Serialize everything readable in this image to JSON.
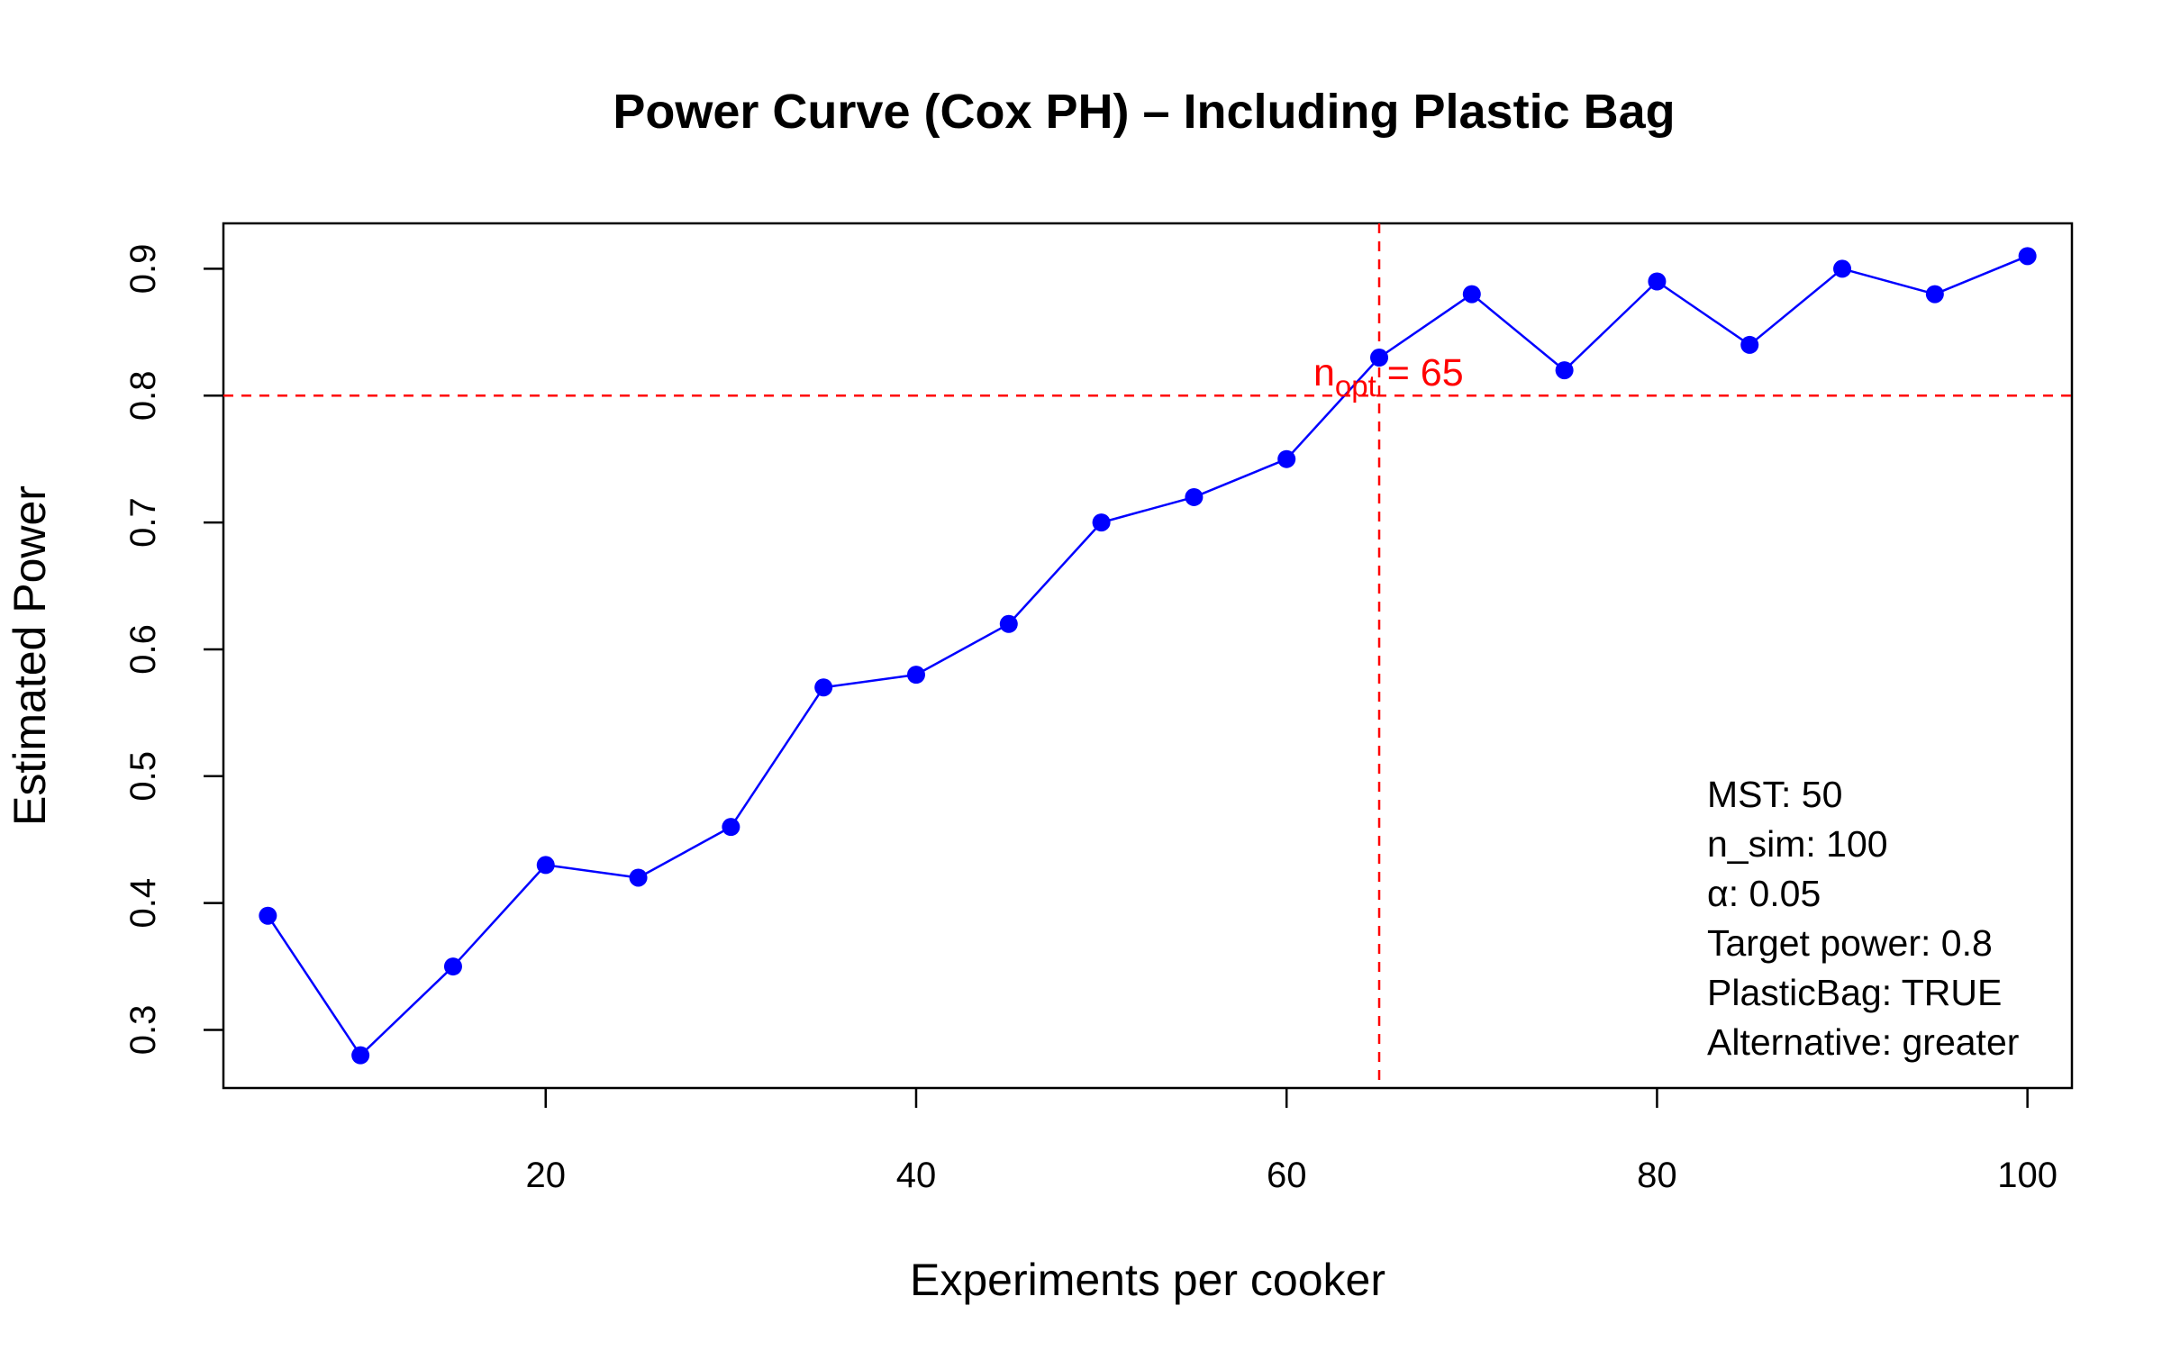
{
  "chart_data": {
    "type": "line",
    "title": "Power Curve (Cox PH) – Including Plastic Bag",
    "xlabel": "Experiments per cooker",
    "ylabel": "Estimated Power",
    "xlim": [
      2.6,
      102.4
    ],
    "ylim": [
      0.2542,
      0.9358
    ],
    "xticks": [
      20,
      40,
      60,
      80,
      100
    ],
    "yticks": [
      0.3,
      0.4,
      0.5,
      0.6,
      0.7,
      0.8,
      0.9
    ],
    "grid": false,
    "series": [
      {
        "color": "#0000ff",
        "x": [
          5,
          10,
          15,
          20,
          25,
          30,
          35,
          40,
          45,
          50,
          55,
          60,
          65,
          70,
          75,
          80,
          85,
          90,
          95,
          100
        ],
        "y": [
          0.39,
          0.28,
          0.35,
          0.43,
          0.42,
          0.46,
          0.57,
          0.58,
          0.62,
          0.7,
          0.72,
          0.75,
          0.83,
          0.88,
          0.82,
          0.89,
          0.84,
          0.9,
          0.88,
          0.91
        ]
      }
    ],
    "reference_lines": {
      "color": "#ff0000",
      "style": "dashed",
      "horizontal_y": 0.8,
      "vertical_x": 65
    },
    "annotation": {
      "base": "n",
      "subscript": "opt",
      "rest": " = 65",
      "color": "#ff0000"
    },
    "info_box": [
      "MST: 50",
      "n_sim: 100",
      "α: 0.05",
      "Target power: 0.8",
      "PlasticBag: TRUE",
      "Alternative: greater"
    ]
  }
}
